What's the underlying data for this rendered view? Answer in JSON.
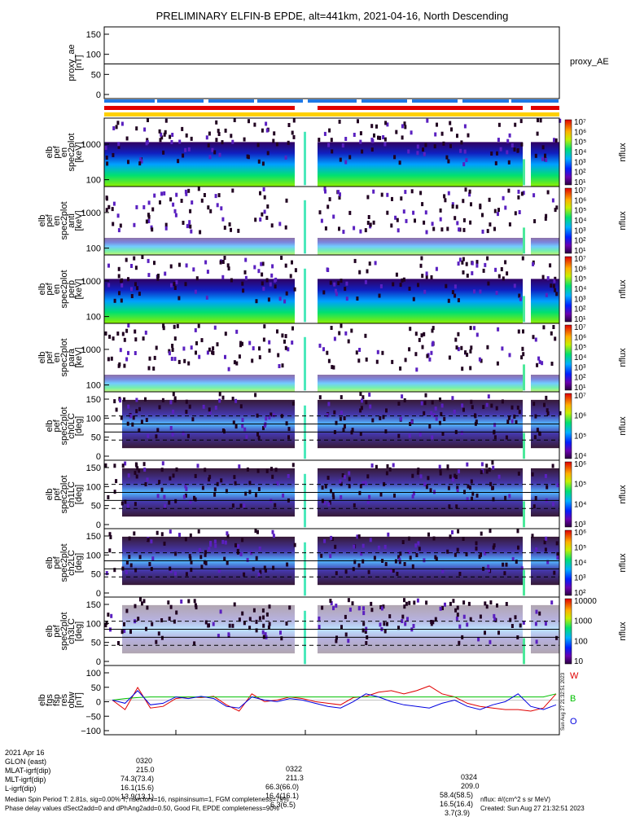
{
  "title": "PRELIMINARY ELFIN-B EPDE, alt=441km, 2021-04-16, North Descending",
  "legend_label_proxy": "proxy_AE",
  "colorbar_label": "nflux",
  "panels": [
    {
      "lines": [
        "proxy_ae",
        "[nT]"
      ],
      "yticks": [
        "150",
        "100",
        "50",
        "0"
      ]
    },
    {
      "lines": [
        "elb",
        "pef",
        "en",
        "spec2plot",
        "[keV]"
      ],
      "yticks": [
        "1000",
        "100"
      ],
      "cbar": [
        "10⁷",
        "10⁶",
        "10⁵",
        "10⁴",
        "10³",
        "10²",
        "10¹"
      ]
    },
    {
      "lines": [
        "elb",
        "pef",
        "en",
        "spec2plot",
        "anti",
        "[keV]"
      ],
      "yticks": [
        "1000",
        "100"
      ],
      "cbar": [
        "10⁷",
        "10⁶",
        "10⁵",
        "10⁴",
        "10³",
        "10²",
        "10¹"
      ]
    },
    {
      "lines": [
        "elb",
        "pef",
        "en",
        "spec2plot",
        "perp",
        "[keV]"
      ],
      "yticks": [
        "1000",
        "100"
      ],
      "cbar": [
        "10⁷",
        "10⁶",
        "10⁵",
        "10⁴",
        "10³",
        "10²",
        "10¹"
      ]
    },
    {
      "lines": [
        "elb",
        "pef",
        "en",
        "spec2plot",
        "para",
        "[keV]"
      ],
      "yticks": [
        "1000",
        "100"
      ],
      "cbar": [
        "10⁷",
        "10⁶",
        "10⁵",
        "10⁴",
        "10³",
        "10²",
        "10¹"
      ]
    },
    {
      "lines": [
        "elb",
        "pef",
        "spec2plot",
        "ch0LC",
        "[deg]"
      ],
      "yticks": [
        "150",
        "100",
        "50",
        "0"
      ],
      "cbar": [
        "10⁷",
        "10⁶",
        "10⁵",
        "10⁴"
      ]
    },
    {
      "lines": [
        "elb",
        "pef",
        "spec2plot",
        "ch1LC",
        "[deg]"
      ],
      "yticks": [
        "150",
        "100",
        "50",
        "0"
      ],
      "cbar": [
        "10⁶",
        "10⁵",
        "10⁴",
        "10³"
      ]
    },
    {
      "lines": [
        "elb",
        "pef",
        "spec2plot",
        "ch2LC",
        "[deg]"
      ],
      "yticks": [
        "150",
        "100",
        "50",
        "0"
      ],
      "cbar": [
        "10⁶",
        "10⁵",
        "10⁴",
        "10³",
        "10²"
      ]
    },
    {
      "lines": [
        "elb",
        "pef",
        "spec2plot",
        "ch3LC",
        "[deg]"
      ],
      "yticks": [
        "150",
        "100",
        "50",
        "0"
      ],
      "cbar": [
        "10000",
        "1000",
        "100",
        "10"
      ]
    },
    {
      "lines": [
        "elb",
        "fgs",
        "fsp",
        "res",
        "obw",
        "[nT]"
      ],
      "yticks": [
        "100",
        "50",
        "0",
        "−50",
        "−100"
      ]
    }
  ],
  "bfield_legend": [
    "W",
    "B",
    "O"
  ],
  "vertical_stamp": "Sun Aug 27 21:32:51 2023",
  "footer": {
    "rows": [
      {
        "label": "2021 Apr 16",
        "v": [
          "0320",
          "0322",
          "0324"
        ]
      },
      {
        "label": "GLON (east)",
        "v": [
          "215.0",
          "211.3",
          "209.0"
        ]
      },
      {
        "label": "MLAT-igrf(dip)",
        "v": [
          "74.3(73.4)",
          "66.3(66.0)",
          "58.4(58.5)"
        ]
      },
      {
        "label": "MLT-igrf(dip)",
        "v": [
          "16.1(15.6)",
          "16.4(16.1)",
          "16.5(16.4)"
        ]
      },
      {
        "label": "L-igrf(dip)",
        "v": [
          "13.9(13.1)",
          "6.3(6.5)",
          "3.7(3.9)"
        ]
      }
    ],
    "note1": "Median Spin Period T: 2.81s, sig=0.00% T, nsectors=16, nspinsinsum=1, FGM completeness=79%",
    "note2": "Phase delay values dSect2add=0 and dPhAng2add=0.50, Good Fit, EPDE completeness=90%",
    "units": "nflux: #/(cm^2 s sr MeV)",
    "created": "Created: Sun Aug 27 21:32:51 2023"
  },
  "chart_data": {
    "type": "heatmap",
    "title": "PRELIMINARY ELFIN-B EPDE, alt=441km, 2021-04-16, North Descending",
    "x_ticks": [
      "0320",
      "0322",
      "0324"
    ],
    "proxy_ae": {
      "ylim": [
        -10,
        160
      ],
      "value": 72,
      "series_name": "proxy_AE"
    },
    "energy_panels_ylim_keV": [
      50,
      7000
    ],
    "pitch_angle_panels_ylim_deg": [
      0,
      170
    ],
    "pitch_angle_reference_lines_deg": [
      70,
      90,
      110
    ],
    "colorbar_range_nflux": [
      10,
      10000000
    ],
    "residual_b": {
      "ylim": [
        -110,
        110
      ],
      "series": [
        {
          "name": "W",
          "color": "#e00000",
          "values": [
            0,
            -30,
            40,
            -25,
            -20,
            5,
            10,
            8,
            12,
            -15,
            -35,
            20,
            -5,
            0,
            10,
            5,
            -5,
            -10,
            -15,
            8,
            12,
            25,
            30,
            20,
            30,
            45,
            20,
            10,
            -10,
            -20,
            -25,
            -30,
            -30,
            -35,
            -25,
            20
          ]
        },
        {
          "name": "B",
          "color": "#00c000",
          "values": [
            0,
            5,
            8,
            10,
            10,
            10,
            10,
            10,
            10,
            10,
            10,
            10,
            10,
            10,
            10,
            10,
            10,
            10,
            10,
            10,
            10,
            10,
            10,
            10,
            10,
            10,
            10,
            10,
            10,
            10,
            10,
            10,
            10,
            10,
            10,
            20
          ]
        },
        {
          "name": "O",
          "color": "#0000e0",
          "values": [
            0,
            -10,
            30,
            -15,
            -10,
            10,
            5,
            12,
            5,
            -20,
            -25,
            10,
            0,
            -5,
            5,
            0,
            -10,
            -20,
            -25,
            -5,
            20,
            10,
            -5,
            -15,
            -20,
            -25,
            -10,
            0,
            -20,
            -30,
            -15,
            -5,
            20,
            -20,
            -30,
            -15
          ]
        }
      ]
    }
  }
}
